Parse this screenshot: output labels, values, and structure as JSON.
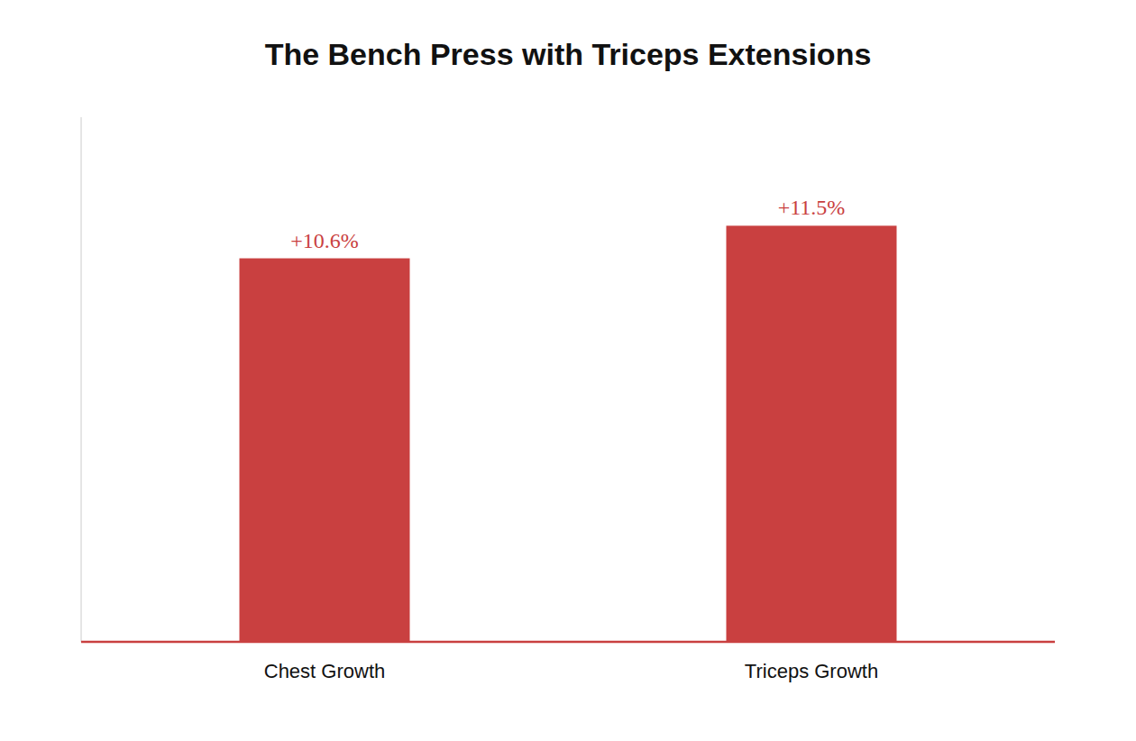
{
  "chart_data": {
    "type": "bar",
    "title": "The Bench Press with Triceps Extensions",
    "categories": [
      "Chest Growth",
      "Triceps Growth"
    ],
    "values": [
      10.6,
      11.5
    ],
    "value_labels": [
      "+10.6%",
      "+11.5%"
    ],
    "color": "#C94040",
    "ylim": [
      0,
      14.5
    ],
    "yticks": [],
    "grid": false,
    "data_labels": true,
    "tick_labels": "x"
  }
}
